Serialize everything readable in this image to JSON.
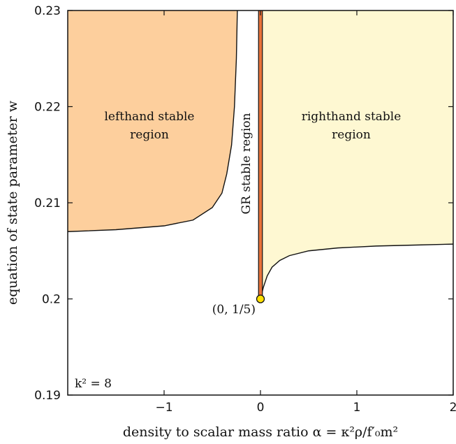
{
  "chart_data": {
    "type": "area",
    "xlabel": "density to scalar mass ratio α = κ²ρ/f′₀m²",
    "ylabel": "equation of state parameter w",
    "xlim": [
      -2,
      2
    ],
    "ylim": [
      0.19,
      0.23
    ],
    "x_ticks": [
      -1,
      0,
      1,
      2
    ],
    "y_ticks": [
      0.19,
      0.2,
      0.21,
      0.22,
      0.23
    ],
    "x_tick_labels": [
      "−1",
      "0",
      "1",
      "2"
    ],
    "y_tick_labels": [
      "0.19",
      "0.2",
      "0.21",
      "0.22",
      "0.23"
    ],
    "grid": false,
    "annotations": {
      "k_label": "k² = 8",
      "point_label": "(0, 1/5)"
    },
    "point": {
      "x": 0,
      "y": 0.2,
      "color": "#ffe000"
    },
    "regions": [
      {
        "name": "lefthand stable region",
        "label_lines": [
          "lefthand stable",
          "region"
        ],
        "color": "#fdcf9d",
        "boundary": [
          {
            "x": -2.0,
            "y": 0.207
          },
          {
            "x": -1.5,
            "y": 0.2072
          },
          {
            "x": -1.0,
            "y": 0.2076
          },
          {
            "x": -0.7,
            "y": 0.2082
          },
          {
            "x": -0.5,
            "y": 0.2095
          },
          {
            "x": -0.4,
            "y": 0.211
          },
          {
            "x": -0.35,
            "y": 0.213
          },
          {
            "x": -0.3,
            "y": 0.216
          },
          {
            "x": -0.27,
            "y": 0.22
          },
          {
            "x": -0.25,
            "y": 0.225
          },
          {
            "x": -0.24,
            "y": 0.23
          }
        ]
      },
      {
        "name": "righthand stable region",
        "label_lines": [
          "righthand stable",
          "region"
        ],
        "color": "#fef8d2",
        "boundary": [
          {
            "x": 0.0,
            "y": 0.2
          },
          {
            "x": 0.03,
            "y": 0.2012
          },
          {
            "x": 0.07,
            "y": 0.2024
          },
          {
            "x": 0.12,
            "y": 0.2033
          },
          {
            "x": 0.2,
            "y": 0.204
          },
          {
            "x": 0.3,
            "y": 0.2045
          },
          {
            "x": 0.5,
            "y": 0.205
          },
          {
            "x": 0.8,
            "y": 0.2053
          },
          {
            "x": 1.2,
            "y": 0.2055
          },
          {
            "x": 1.6,
            "y": 0.2056
          },
          {
            "x": 2.0,
            "y": 0.2057
          }
        ]
      },
      {
        "name": "GR stable region",
        "label_lines": [
          "GR stable region"
        ],
        "color": "#e8733b",
        "x_range": [
          -0.02,
          0.02
        ],
        "y_range": [
          0.2,
          0.23
        ]
      }
    ]
  }
}
